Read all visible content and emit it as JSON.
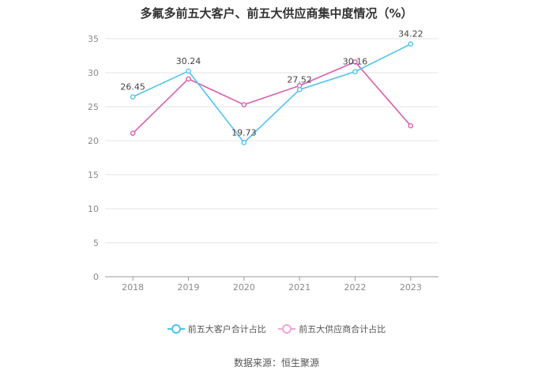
{
  "title": "多氟多前五大客户、前五大供应商集中度情况（%）",
  "source": "数据来源：恒生聚源",
  "chart_data": {
    "type": "line",
    "title": "多氟多前五大客户、前五大供应商集中度情况（%）",
    "categories": [
      "2018",
      "2019",
      "2020",
      "2021",
      "2022",
      "2023"
    ],
    "ylim": [
      0,
      35
    ],
    "yticks": [
      0,
      5,
      10,
      15,
      20,
      25,
      30,
      35
    ],
    "grid": true,
    "legend_position": "bottom",
    "series": [
      {
        "name": "前五大客户合计占比",
        "color": "#4fc3f0",
        "values": [
          26.45,
          30.24,
          19.73,
          27.52,
          30.16,
          34.22
        ],
        "labels": [
          "26.45",
          "30.24",
          "19.73",
          "27.52",
          "30.16",
          "34.22"
        ]
      },
      {
        "name": "前五大供应商合计占比",
        "color": "#d95fb0",
        "values": [
          21.1,
          29.1,
          25.3,
          28.1,
          31.6,
          22.2
        ],
        "labels": []
      }
    ]
  }
}
